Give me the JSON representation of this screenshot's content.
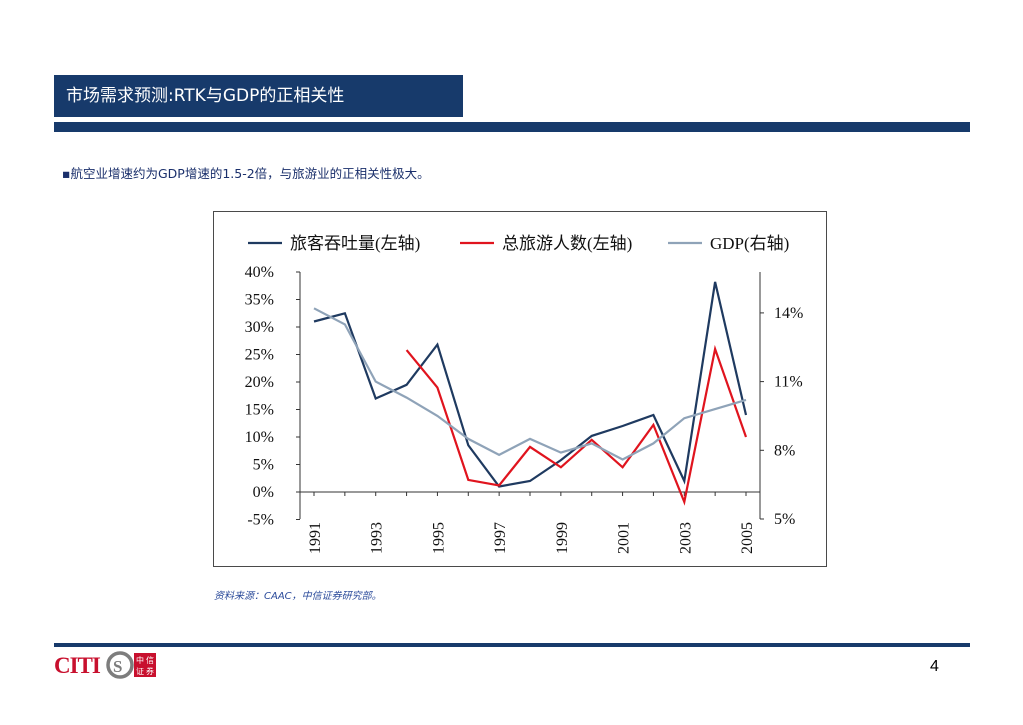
{
  "slide": {
    "title": "市场需求预测:RTK与GDP的正相关性",
    "bullet_marker": "▪",
    "bullet_text": "航空业增速约为GDP增速的1.5-2倍，与旅游业的正相关性极大。",
    "source": "资料来源：CAAC，中信证券研究部。",
    "page_number": "4",
    "logo_text": "CITICS",
    "logo_cn": [
      "中",
      "信",
      "证",
      "券"
    ]
  },
  "colors": {
    "navy": "#173a6b",
    "series_rtk": "#1f3a60",
    "series_tourism": "#e0141e",
    "series_gdp": "#8fa3b8",
    "logo_red": "#c8102e"
  },
  "chart_data": {
    "type": "line",
    "x": [
      1991,
      1992,
      1993,
      1994,
      1995,
      1996,
      1997,
      1998,
      1999,
      2000,
      2001,
      2002,
      2003,
      2004,
      2005
    ],
    "xtick_labels": [
      "1991",
      "1993",
      "1995",
      "1997",
      "1999",
      "2001",
      "2003",
      "2005"
    ],
    "y_left_ticks": [
      "40%",
      "35%",
      "30%",
      "25%",
      "20%",
      "15%",
      "10%",
      "5%",
      "0%",
      "-5%"
    ],
    "y_left_range": [
      -5,
      40
    ],
    "y_right_ticks": [
      "14%",
      "11%",
      "8%",
      "5%"
    ],
    "y_right_range": [
      5,
      15
    ],
    "legend_position": "top",
    "series": [
      {
        "name": "旅客吞吐量(左轴)",
        "axis": "left",
        "color": "#1f3a60",
        "values": [
          31.0,
          32.5,
          17.0,
          19.5,
          26.8,
          8.5,
          1.0,
          2.0,
          5.8,
          10.2,
          12.0,
          14.0,
          2.0,
          38.2,
          14.0
        ]
      },
      {
        "name": "总旅游人数(左轴)",
        "axis": "left",
        "color": "#e0141e",
        "values": [
          null,
          null,
          null,
          25.8,
          19.0,
          2.2,
          1.2,
          8.2,
          4.5,
          9.5,
          4.5,
          12.2,
          -1.8,
          26.0,
          10.0
        ]
      },
      {
        "name": "GDP(右轴)",
        "axis": "right",
        "color": "#8fa3b8",
        "values": [
          14.2,
          13.5,
          11.0,
          10.3,
          9.5,
          8.5,
          7.8,
          8.5,
          7.9,
          8.3,
          7.6,
          8.3,
          9.4,
          9.8,
          10.2
        ]
      }
    ]
  }
}
